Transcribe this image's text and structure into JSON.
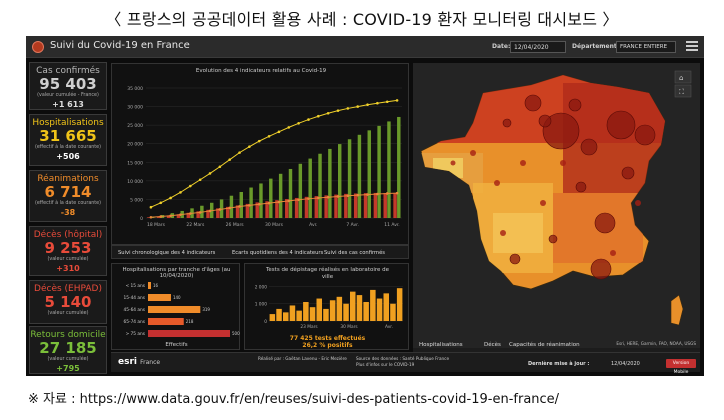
{
  "heading": "〈 프랑스의 공공데이터 활용 사례 : COVID-19 환자 모니터링 대시보드 〉",
  "source": "※ 자료 : https://www.data.gouv.fr/en/reuses/suivi-des-patients-covid-19-en-france/",
  "dashboard": {
    "title": "Suivi du Covid-19 en France",
    "date_label": "Date:",
    "date_value": "12/04/2020",
    "dept_label": "Département:",
    "dept_value": "FRANCE ENTIERE"
  },
  "stats": [
    {
      "label": "Cas confirmés",
      "value": "95 403",
      "sub": "(valeur cumulée - France)",
      "delta": "+1 613",
      "color": "#9a9a9a",
      "delta_color": "#ffffff"
    },
    {
      "label": "Hospitalisations",
      "value": "31 665",
      "sub": "(effectif à la date courante)",
      "delta": "+506",
      "color": "#f0c419",
      "delta_color": "#ffffff"
    },
    {
      "label": "Réanimations",
      "value": "6 714",
      "sub": "(effectif à la date courante)",
      "delta": "-38",
      "color": "#f08c2a",
      "delta_color": "#ffffff"
    },
    {
      "label": "Décès (hôpital)",
      "value": "9 253",
      "sub": "(valeur cumulée)",
      "delta": "+310",
      "color": "#e84b3a",
      "delta_color": "#ffffff"
    },
    {
      "label": "Décès (EHPAD)",
      "value": "5 140",
      "sub": "(valeur cumulée)",
      "delta": "+795",
      "color": "#e84b3a",
      "delta_color": "#ffffff"
    },
    {
      "label": "Retours domicile",
      "value": "27 185",
      "sub": "(valeur cumulée)",
      "delta": "+795",
      "color": "#7bbf3a",
      "delta_color": "#ffffff"
    }
  ],
  "main_chart": {
    "title": "Evolution des 4 indicateurs relatifs au Covid-19",
    "tabs": [
      "Suivi chronologique des 4 indicateurs",
      "Ecarts quotidiens des 4 indicateurs",
      "Suivi des cas confirmés"
    ]
  },
  "age_chart": {
    "title": "Hospitalisations par tranche d'âges (au 10/04/2020)",
    "footer_label": "Effectifs"
  },
  "tests_chart": {
    "title": "Tests de dépistage réalisés en laboratoire de ville",
    "line1": "77 425 tests effectués",
    "line2": "26,2 % positifs"
  },
  "map": {
    "tabs": [
      "Hospitalisations",
      "Décès",
      "Capacités de réanimation"
    ],
    "attribution": "Esri, HERE, Garmin, FAO, NOAA, USGS"
  },
  "footer": {
    "brand": "esri",
    "brand_sub": "France",
    "credits_1": "Réalisé par : Gaëtan Lavenu - Eric Mezière",
    "credits_2": "Source des données : Santé Publique France",
    "credits_3": "Plus d'infos sur le COVID-19",
    "update_label": "Dernière mise à jour :",
    "update_date": "12/04/2020",
    "mobile_label": "Version Mobile"
  },
  "chart_data": [
    {
      "type": "bar",
      "title": "Evolution des 4 indicateurs relatifs au Covid-19",
      "x_tick_labels": [
        "18 Mars",
        "22 Mars",
        "26 Mars",
        "30 Mars",
        "Avr.",
        "7 Avr.",
        "11 Avr."
      ],
      "ylim": [
        0,
        35000
      ],
      "y_ticks": [
        0,
        5000,
        10000,
        15000,
        20000,
        25000,
        30000,
        35000
      ],
      "y_tick_labels": [
        "0",
        "5 000",
        "10 000",
        "15 000",
        "20 000",
        "25 000",
        "30 000",
        "35 000"
      ],
      "series": [
        {
          "kind": "bar",
          "color": "#6a9a2a",
          "values": [
            400,
            800,
            1300,
            1900,
            2600,
            3300,
            4100,
            5000,
            6000,
            7000,
            8200,
            9300,
            10600,
            11900,
            13200,
            14600,
            16000,
            17300,
            18600,
            19900,
            21200,
            22400,
            23600,
            24800,
            26000,
            27200
          ]
        },
        {
          "kind": "bar",
          "color": "#c43a2a",
          "values": [
            200,
            400,
            700,
            1000,
            1400,
            1800,
            2200,
            2600,
            3000,
            3400,
            3800,
            4200,
            4500,
            4800,
            5100,
            5400,
            5700,
            5900,
            6100,
            6300,
            6500,
            6600,
            6700,
            6750,
            6720,
            6714
          ]
        },
        {
          "kind": "line",
          "color": "#f0d02a",
          "values": [
            2900,
            4100,
            5400,
            6900,
            8600,
            10300,
            12000,
            13800,
            15700,
            17600,
            19200,
            20700,
            22000,
            23200,
            24400,
            25500,
            26500,
            27400,
            28200,
            28900,
            29500,
            30000,
            30500,
            30900,
            31300,
            31665
          ]
        },
        {
          "kind": "line",
          "color": "#e8883a",
          "values": [
            200,
            400,
            600,
            900,
            1200,
            1500,
            1900,
            2300,
            2700,
            3100,
            3400,
            3700,
            4000,
            4300,
            4600,
            4900,
            5200,
            5400,
            5600,
            5800,
            6000,
            6150,
            6300,
            6450,
            6600,
            6700
          ]
        }
      ]
    },
    {
      "type": "bar",
      "title": "Hospitalisations par tranche d'âges (au 10/04/2020)",
      "orientation": "horizontal",
      "categories": [
        "< 15 ans",
        "15-44 ans",
        "45-64 ans",
        "65-74 ans",
        "> 75 ans"
      ],
      "values": [
        16,
        140,
        319,
        218,
        500
      ],
      "colors": [
        "#f08c2a",
        "#f08c2a",
        "#f08c2a",
        "#e65a2a",
        "#c43030"
      ],
      "xlabel": "Effectifs"
    },
    {
      "type": "bar",
      "title": "Tests de dépistage réalisés en laboratoire de ville",
      "x_tick_labels": [
        "23 Mars",
        "30 Mars",
        "Avr."
      ],
      "ylim": [
        0,
        2200
      ],
      "y_ticks": [
        0,
        1000,
        2000
      ],
      "y_tick_labels": [
        "0",
        "1 000",
        "2 000"
      ],
      "values": [
        400,
        700,
        500,
        900,
        600,
        1100,
        800,
        1300,
        700,
        1200,
        1400,
        1000,
        1700,
        1500,
        1100,
        1800,
        1300,
        1600,
        1000,
        1900
      ],
      "color": "#f0a020"
    }
  ]
}
